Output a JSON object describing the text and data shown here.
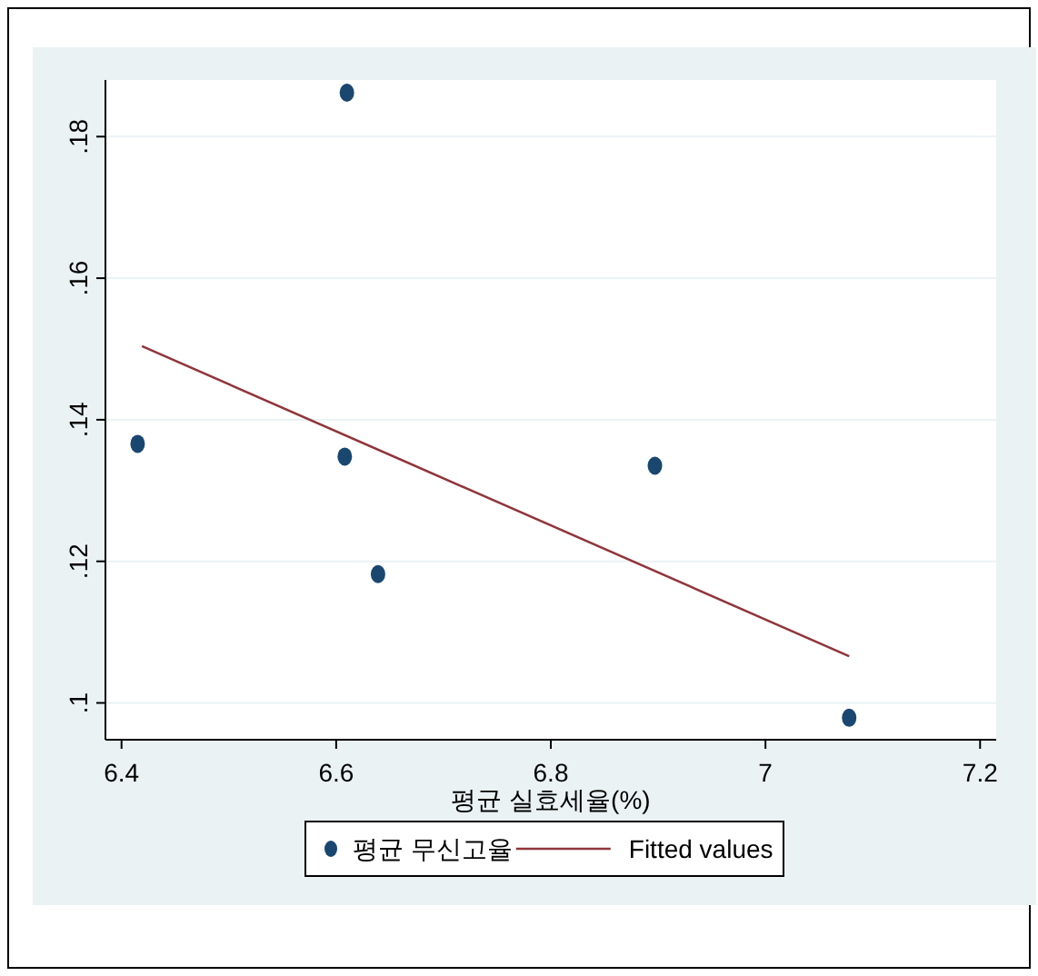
{
  "chart_data": {
    "type": "scatter",
    "xlabel": "평균 실효세율(%)",
    "xlim": [
      6.385,
      7.215
    ],
    "ylim": [
      0.0948,
      0.188
    ],
    "xticks": [
      6.4,
      6.6,
      6.8,
      7,
      7.2
    ],
    "yticks": [
      {
        "value": 0.1,
        "label": ".1"
      },
      {
        "value": 0.12,
        "label": ".12"
      },
      {
        "value": 0.14,
        "label": ".14"
      },
      {
        "value": 0.16,
        "label": ".16"
      },
      {
        "value": 0.18,
        "label": ".18"
      }
    ],
    "grid": "y",
    "legend": "bottom",
    "series": [
      {
        "name": "평균 무신고율",
        "marker": "circle",
        "color": "#1a476f",
        "x": [
          6.415,
          6.61,
          6.608,
          6.639,
          6.897,
          7.078
        ],
        "values": [
          0.1366,
          0.1862,
          0.1348,
          0.1182,
          0.1335,
          0.0979
        ]
      },
      {
        "name": "Fitted values",
        "type": "line",
        "color": "#90353b",
        "x": [
          6.419,
          7.078
        ],
        "values": [
          0.1504,
          0.1066
        ]
      }
    ]
  }
}
